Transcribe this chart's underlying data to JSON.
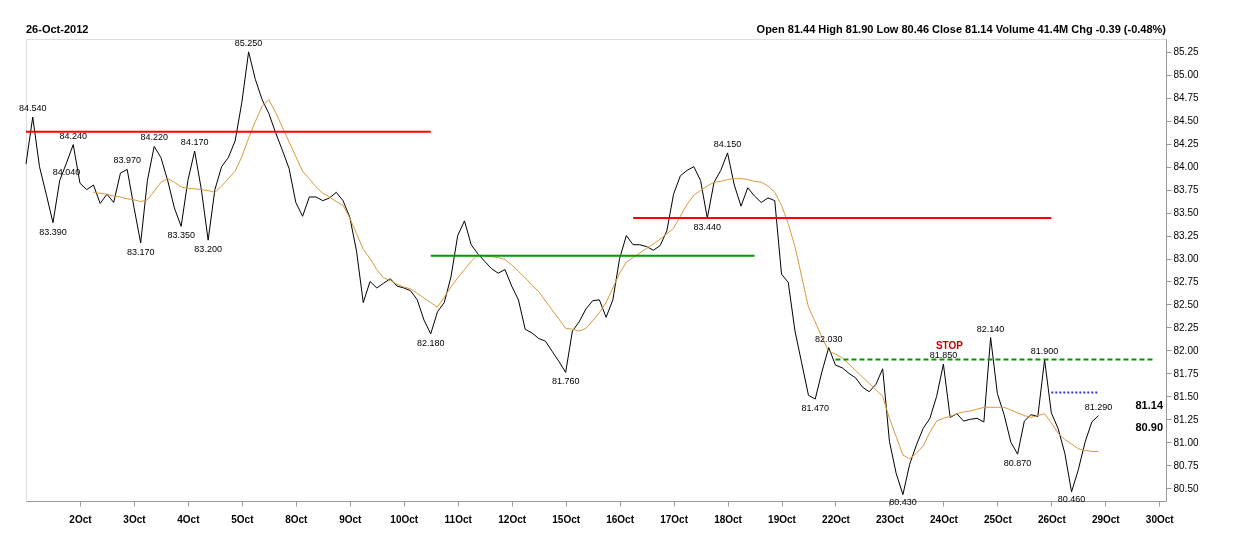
{
  "chart_data": {
    "type": "line",
    "categories": [
      null,
      null,
      null,
      null,
      null,
      null,
      null,
      null,
      "2Oct",
      null,
      null,
      null,
      null,
      null,
      null,
      null,
      "3Oct",
      null,
      null,
      null,
      null,
      null,
      null,
      null,
      "4Oct",
      null,
      null,
      null,
      null,
      null,
      null,
      null,
      "5Oct",
      null,
      null,
      null,
      null,
      null,
      null,
      null,
      "8Oct",
      null,
      null,
      null,
      null,
      null,
      null,
      null,
      "9Oct",
      null,
      null,
      null,
      null,
      null,
      null,
      null,
      "10Oct",
      null,
      null,
      null,
      null,
      null,
      null,
      null,
      "11Oct",
      null,
      null,
      null,
      null,
      null,
      null,
      null,
      "12Oct",
      null,
      null,
      null,
      null,
      null,
      null,
      null,
      "15Oct",
      null,
      null,
      null,
      null,
      null,
      null,
      null,
      "16Oct",
      null,
      null,
      null,
      null,
      null,
      null,
      null,
      "17Oct",
      null,
      null,
      null,
      null,
      null,
      null,
      null,
      "18Oct",
      null,
      null,
      null,
      null,
      null,
      null,
      null,
      "19Oct",
      null,
      null,
      null,
      null,
      null,
      null,
      null,
      "22Oct",
      null,
      null,
      null,
      null,
      null,
      null,
      null,
      "23Oct",
      null,
      null,
      null,
      null,
      null,
      null,
      null,
      "24Oct",
      null,
      null,
      null,
      null,
      null,
      null,
      null,
      "25Oct",
      null,
      null,
      null,
      null,
      null,
      null,
      null,
      "26Oct",
      null,
      null,
      null,
      null,
      null,
      null,
      null,
      "29Oct",
      null,
      null,
      null,
      null,
      null,
      null,
      null,
      "30Oct",
      null
    ],
    "ylim": [
      80.36,
      85.39
    ],
    "yticks": [
      {
        "value": 80.5,
        "label": "80.50"
      },
      80.75,
      {
        "value": 81,
        "label": "81.00"
      },
      81.25,
      {
        "value": 81.5,
        "label": "81.50"
      },
      81.75,
      {
        "value": 82,
        "label": "82.00"
      },
      82.25,
      {
        "value": 82.5,
        "label": "82.50"
      },
      82.75,
      {
        "value": 83,
        "label": "83.00"
      },
      83.25,
      {
        "value": 83.5,
        "label": "83.50"
      },
      83.75,
      {
        "value": 84,
        "label": "84.00"
      },
      84.25,
      {
        "value": 84.5,
        "label": "84.50"
      },
      84.75,
      {
        "value": 85,
        "label": "85.00"
      },
      85.25
    ],
    "series": [
      {
        "color": "#000000",
        "line_style": "solid",
        "values": [
          84.03,
          84.54,
          84.0,
          83.7,
          83.39,
          83.85,
          84.04,
          84.24,
          83.82,
          83.75,
          83.8,
          83.6,
          83.7,
          83.61,
          83.93,
          83.97,
          83.56,
          83.17,
          83.85,
          84.22,
          84.1,
          83.85,
          83.55,
          83.35,
          83.85,
          84.17,
          83.75,
          83.2,
          83.75,
          84.0,
          84.1,
          84.28,
          84.7,
          85.25,
          84.95,
          84.73,
          84.58,
          84.37,
          84.18,
          83.98,
          83.61,
          83.46,
          83.67,
          83.67,
          83.63,
          83.66,
          83.72,
          83.63,
          83.45,
          83.08,
          82.52,
          82.75,
          82.68,
          82.73,
          82.78,
          82.7,
          82.68,
          82.65,
          82.55,
          82.33,
          82.18,
          82.42,
          82.52,
          82.8,
          83.25,
          83.41,
          83.15,
          83.05,
          82.97,
          82.89,
          82.84,
          82.88,
          82.7,
          82.55,
          82.23,
          82.19,
          82.13,
          82.1,
          81.99,
          81.88,
          81.76,
          82.21,
          82.31,
          82.45,
          82.54,
          82.55,
          82.36,
          82.55,
          83.0,
          83.25,
          83.15,
          83.15,
          83.13,
          83.09,
          83.14,
          83.3,
          83.7,
          83.9,
          83.96,
          84.0,
          83.85,
          83.44,
          83.83,
          83.96,
          84.15,
          83.8,
          83.57,
          83.77,
          83.68,
          83.61,
          83.66,
          83.63,
          82.83,
          82.74,
          82.21,
          81.86,
          81.51,
          81.47,
          81.77,
          82.03,
          81.84,
          81.81,
          81.75,
          81.7,
          81.6,
          81.55,
          81.63,
          81.8,
          81.01,
          80.66,
          80.43,
          80.76,
          80.97,
          81.15,
          81.26,
          81.5,
          81.85,
          81.27,
          81.31,
          81.23,
          81.25,
          81.26,
          81.22,
          82.14,
          81.53,
          81.3,
          81.0,
          80.87,
          81.23,
          81.3,
          81.28,
          81.9,
          81.32,
          81.15,
          80.88,
          80.46,
          80.7,
          81.0,
          81.22,
          81.29,
          null,
          null,
          null,
          null,
          null,
          null,
          null,
          null,
          null,
          null
        ]
      },
      {
        "color": "#d99a3c",
        "line_style": "solid",
        "values": [
          null,
          null,
          null,
          null,
          null,
          null,
          null,
          null,
          null,
          null,
          83.72,
          83.71,
          83.7,
          83.68,
          83.67,
          83.65,
          83.64,
          83.62,
          83.64,
          83.73,
          83.83,
          83.87,
          83.83,
          83.78,
          83.76,
          83.76,
          83.75,
          83.74,
          83.72,
          83.79,
          83.87,
          83.95,
          84.11,
          84.31,
          84.49,
          84.66,
          84.73,
          84.59,
          84.43,
          84.27,
          84.11,
          83.95,
          83.87,
          83.78,
          83.71,
          83.67,
          83.62,
          83.58,
          83.44,
          83.27,
          83.1,
          83.0,
          82.88,
          82.79,
          82.76,
          82.72,
          82.69,
          82.67,
          82.62,
          82.57,
          82.52,
          82.47,
          82.58,
          82.69,
          82.79,
          82.88,
          82.97,
          83.04,
          83.03,
          83.02,
          83.01,
          82.99,
          82.93,
          82.86,
          82.79,
          82.71,
          82.64,
          82.54,
          82.44,
          82.34,
          82.24,
          82.23,
          82.21,
          82.24,
          82.32,
          82.41,
          82.52,
          82.68,
          82.84,
          82.96,
          83.01,
          83.06,
          83.11,
          83.16,
          83.21,
          83.27,
          83.33,
          83.46,
          83.59,
          83.69,
          83.74,
          83.79,
          83.83,
          83.84,
          83.86,
          83.87,
          83.87,
          83.86,
          83.84,
          83.83,
          83.79,
          83.72,
          83.58,
          83.38,
          83.13,
          82.8,
          82.47,
          82.31,
          82.14,
          81.99,
          81.96,
          81.92,
          81.85,
          81.78,
          81.71,
          81.64,
          81.57,
          81.5,
          81.26,
          81.06,
          80.86,
          80.82,
          80.88,
          80.96,
          81.11,
          81.23,
          81.26,
          81.28,
          81.31,
          81.33,
          81.34,
          81.36,
          81.38,
          81.38,
          81.38,
          81.38,
          81.35,
          81.32,
          81.29,
          81.27,
          81.29,
          81.31,
          81.21,
          81.1,
          81.03,
          80.98,
          80.93,
          80.91,
          80.9,
          80.9,
          null,
          null,
          null,
          null,
          null,
          null,
          null,
          null,
          null,
          null
        ]
      },
      {
        "color": "#ff0000",
        "line_style": "solid",
        "values": [
          84.38,
          84.38,
          84.38,
          84.38,
          84.38,
          84.38,
          84.38,
          84.38,
          84.38,
          84.38,
          84.38,
          84.38,
          84.38,
          84.38,
          84.38,
          84.38,
          84.38,
          84.38,
          84.38,
          84.38,
          84.38,
          84.38,
          84.38,
          84.38,
          84.38,
          84.38,
          84.38,
          84.38,
          84.38,
          84.38,
          84.38,
          84.38,
          84.38,
          84.38,
          84.38,
          84.38,
          84.38,
          84.38,
          84.38,
          84.38,
          84.38,
          84.38,
          84.38,
          84.38,
          84.38,
          84.38,
          84.38,
          84.38,
          84.38,
          84.38,
          84.38,
          84.38,
          84.38,
          84.38,
          84.38,
          84.38,
          84.38,
          84.38,
          84.38,
          84.38,
          84.38,
          null,
          null,
          null,
          null,
          null,
          null,
          null,
          null,
          null,
          null,
          null,
          null,
          null,
          null,
          null,
          null,
          null,
          null,
          null,
          null,
          null,
          null,
          null,
          null,
          null,
          null,
          null,
          null,
          null,
          null,
          null,
          null,
          null,
          null,
          null,
          null,
          null,
          null,
          null,
          null,
          null,
          null,
          null,
          null,
          null,
          null,
          null,
          null,
          null,
          null,
          null,
          null,
          null,
          null,
          null,
          null,
          null,
          null,
          null,
          null,
          null,
          null,
          null,
          null,
          null,
          null,
          null,
          null,
          null,
          null,
          null,
          null,
          null,
          null,
          null,
          null,
          null,
          null,
          null,
          null,
          null,
          null,
          null,
          null,
          null,
          null,
          null,
          null,
          null,
          null,
          null,
          null,
          null,
          null,
          null,
          null,
          null,
          null,
          null,
          null,
          null,
          null,
          null,
          null,
          null,
          null,
          null,
          null,
          null
        ]
      },
      {
        "color": "#009900",
        "line_style": "solid",
        "values": [
          null,
          null,
          null,
          null,
          null,
          null,
          null,
          null,
          null,
          null,
          null,
          null,
          null,
          null,
          null,
          null,
          null,
          null,
          null,
          null,
          null,
          null,
          null,
          null,
          null,
          null,
          null,
          null,
          null,
          null,
          null,
          null,
          null,
          null,
          null,
          null,
          null,
          null,
          null,
          null,
          null,
          null,
          null,
          null,
          null,
          null,
          null,
          null,
          null,
          null,
          null,
          null,
          null,
          null,
          null,
          null,
          null,
          null,
          null,
          null,
          83.03,
          83.03,
          83.03,
          83.03,
          83.03,
          83.03,
          83.03,
          83.03,
          83.03,
          83.03,
          83.03,
          83.03,
          83.03,
          83.03,
          83.03,
          83.03,
          83.03,
          83.03,
          83.03,
          83.03,
          83.03,
          83.03,
          83.03,
          83.03,
          83.03,
          83.03,
          83.03,
          83.03,
          83.03,
          83.03,
          83.03,
          83.03,
          83.03,
          83.03,
          83.03,
          83.03,
          83.03,
          83.03,
          83.03,
          83.03,
          83.03,
          83.03,
          83.03,
          83.03,
          83.03,
          83.03,
          83.03,
          83.03,
          83.03,
          null,
          null,
          null,
          null,
          null,
          null,
          null,
          null,
          null,
          null,
          null,
          null,
          null,
          null,
          null,
          null,
          null,
          null,
          null,
          null,
          null,
          null,
          null,
          null,
          null,
          null,
          null,
          null,
          null,
          null,
          null,
          null,
          null,
          null,
          null,
          null,
          null,
          null,
          null,
          null,
          null,
          null,
          null,
          null,
          null,
          null,
          null,
          null,
          null,
          null,
          null,
          null,
          null,
          null,
          null,
          null,
          null,
          null,
          null,
          null,
          null
        ]
      },
      {
        "color": "#ff0000",
        "line_style": "solid",
        "values": [
          null,
          null,
          null,
          null,
          null,
          null,
          null,
          null,
          null,
          null,
          null,
          null,
          null,
          null,
          null,
          null,
          null,
          null,
          null,
          null,
          null,
          null,
          null,
          null,
          null,
          null,
          null,
          null,
          null,
          null,
          null,
          null,
          null,
          null,
          null,
          null,
          null,
          null,
          null,
          null,
          null,
          null,
          null,
          null,
          null,
          null,
          null,
          null,
          null,
          null,
          null,
          null,
          null,
          null,
          null,
          null,
          null,
          null,
          null,
          null,
          null,
          null,
          null,
          null,
          null,
          null,
          null,
          null,
          null,
          null,
          null,
          null,
          null,
          null,
          null,
          null,
          null,
          null,
          null,
          null,
          null,
          null,
          null,
          null,
          null,
          null,
          null,
          null,
          null,
          null,
          83.44,
          83.44,
          83.44,
          83.44,
          83.44,
          83.44,
          83.44,
          83.44,
          83.44,
          83.44,
          83.44,
          83.44,
          83.44,
          83.44,
          83.44,
          83.44,
          83.44,
          83.44,
          83.44,
          83.44,
          83.44,
          83.44,
          83.44,
          83.44,
          83.44,
          83.44,
          83.44,
          83.44,
          83.44,
          83.44,
          83.44,
          83.44,
          83.44,
          83.44,
          83.44,
          83.44,
          83.44,
          83.44,
          83.44,
          83.44,
          83.44,
          83.44,
          83.44,
          83.44,
          83.44,
          83.44,
          83.44,
          83.44,
          83.44,
          83.44,
          83.44,
          83.44,
          83.44,
          83.44,
          83.44,
          83.44,
          83.44,
          83.44,
          83.44,
          83.44,
          83.44,
          83.44,
          83.44,
          null,
          null,
          null,
          null,
          null,
          null,
          null,
          null,
          null,
          null,
          null,
          null,
          null,
          null,
          null,
          null,
          null
        ]
      },
      {
        "color": "#009900",
        "line_style": "dashed",
        "values": [
          null,
          null,
          null,
          null,
          null,
          null,
          null,
          null,
          null,
          null,
          null,
          null,
          null,
          null,
          null,
          null,
          null,
          null,
          null,
          null,
          null,
          null,
          null,
          null,
          null,
          null,
          null,
          null,
          null,
          null,
          null,
          null,
          null,
          null,
          null,
          null,
          null,
          null,
          null,
          null,
          null,
          null,
          null,
          null,
          null,
          null,
          null,
          null,
          null,
          null,
          null,
          null,
          null,
          null,
          null,
          null,
          null,
          null,
          null,
          null,
          null,
          null,
          null,
          null,
          null,
          null,
          null,
          null,
          null,
          null,
          null,
          null,
          null,
          null,
          null,
          null,
          null,
          null,
          null,
          null,
          null,
          null,
          null,
          null,
          null,
          null,
          null,
          null,
          null,
          null,
          null,
          null,
          null,
          null,
          null,
          null,
          null,
          null,
          null,
          null,
          null,
          null,
          null,
          null,
          null,
          null,
          null,
          null,
          null,
          null,
          null,
          null,
          null,
          null,
          null,
          null,
          null,
          null,
          null,
          null,
          81.9,
          81.9,
          81.9,
          81.9,
          81.9,
          81.9,
          81.9,
          81.9,
          81.9,
          81.9,
          81.9,
          81.9,
          81.9,
          81.9,
          81.9,
          81.9,
          81.9,
          81.9,
          81.9,
          81.9,
          81.9,
          81.9,
          81.9,
          81.9,
          81.9,
          81.9,
          81.9,
          81.9,
          81.9,
          81.9,
          81.9,
          81.9,
          81.9,
          81.9,
          81.9,
          81.9,
          81.9,
          81.9,
          81.9,
          81.9,
          81.9,
          81.9,
          81.9,
          81.9,
          81.9,
          81.9,
          81.9,
          81.9,
          null,
          null
        ]
      },
      {
        "color": "#3333cc",
        "line_style": "dotted",
        "values": [
          null,
          null,
          null,
          null,
          null,
          null,
          null,
          null,
          null,
          null,
          null,
          null,
          null,
          null,
          null,
          null,
          null,
          null,
          null,
          null,
          null,
          null,
          null,
          null,
          null,
          null,
          null,
          null,
          null,
          null,
          null,
          null,
          null,
          null,
          null,
          null,
          null,
          null,
          null,
          null,
          null,
          null,
          null,
          null,
          null,
          null,
          null,
          null,
          null,
          null,
          null,
          null,
          null,
          null,
          null,
          null,
          null,
          null,
          null,
          null,
          null,
          null,
          null,
          null,
          null,
          null,
          null,
          null,
          null,
          null,
          null,
          null,
          null,
          null,
          null,
          null,
          null,
          null,
          null,
          null,
          null,
          null,
          null,
          null,
          null,
          null,
          null,
          null,
          null,
          null,
          null,
          null,
          null,
          null,
          null,
          null,
          null,
          null,
          null,
          null,
          null,
          null,
          null,
          null,
          null,
          null,
          null,
          null,
          null,
          null,
          null,
          null,
          null,
          null,
          null,
          null,
          null,
          null,
          null,
          null,
          null,
          null,
          null,
          null,
          null,
          null,
          null,
          null,
          null,
          null,
          null,
          null,
          null,
          null,
          null,
          null,
          null,
          null,
          null,
          null,
          null,
          null,
          null,
          null,
          null,
          null,
          null,
          null,
          null,
          null,
          null,
          null,
          81.54,
          81.54,
          81.54,
          81.54,
          81.54,
          81.54,
          81.54,
          81.54,
          null,
          null,
          null,
          null,
          null,
          null,
          null,
          null,
          null,
          null
        ]
      }
    ],
    "annotations": [
      "26-Oct-2012",
      "Open 81.44  High 81.90  Low 80.46  Close 81.14  Volume 41.4M  Chg -0.39 (-0.48%)",
      "81.14",
      "80.90",
      "STOP",
      {
        "text": "84.540",
        "y": 84.54
      },
      {
        "text": "84.240",
        "y": 84.24
      },
      {
        "text": "84.040",
        "y": 84.04
      },
      {
        "text": "83.390",
        "y": 83.39
      },
      {
        "text": "83.970",
        "y": 83.97
      },
      {
        "text": "83.170",
        "y": 83.17
      },
      {
        "text": "84.220",
        "y": 84.22
      },
      {
        "text": "83.350",
        "y": 83.35
      },
      {
        "text": "84.170",
        "y": 84.17
      },
      {
        "text": "83.200",
        "y": 83.2
      },
      {
        "text": "85.250",
        "y": 85.25
      },
      {
        "text": "82.180",
        "y": 82.18
      },
      {
        "text": "81.760",
        "y": 81.76
      },
      {
        "text": "84.150",
        "y": 84.15
      },
      {
        "text": "83.440",
        "y": 83.44
      },
      {
        "text": "82.030",
        "y": 82.03
      },
      {
        "text": "81.470",
        "y": 81.47
      },
      {
        "text": "80.430",
        "y": 80.43
      },
      {
        "text": "81.850",
        "y": 81.85
      },
      {
        "text": "82.140",
        "y": 82.14
      },
      {
        "text": "80.870",
        "y": 80.87
      },
      {
        "text": "81.900",
        "y": 81.9
      },
      {
        "text": "80.460",
        "y": 80.46
      },
      {
        "text": "81.290",
        "y": 81.29
      }
    ]
  }
}
